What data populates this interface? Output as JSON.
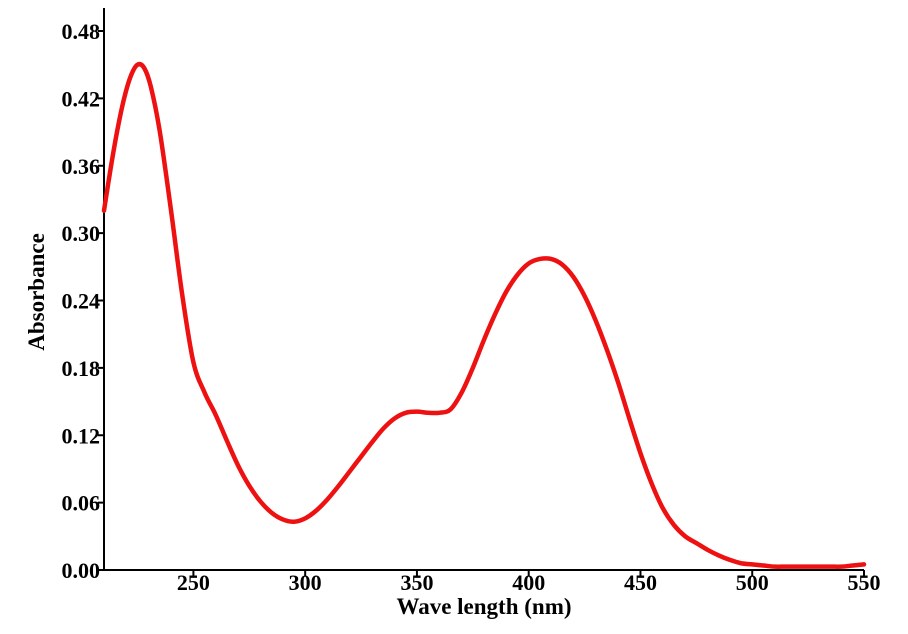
{
  "chart_data": {
    "type": "line",
    "title": "",
    "xlabel": "Wave length (nm)",
    "ylabel": "Absorbance",
    "xlim": [
      210,
      550
    ],
    "ylim": [
      0,
      0.48
    ],
    "x_ticks": [
      250,
      300,
      350,
      400,
      450,
      500,
      550
    ],
    "x_tick_labels": [
      "250",
      "300",
      "350",
      "400",
      "450",
      "500",
      "550"
    ],
    "y_ticks": [
      0,
      0.06,
      0.12,
      0.18,
      0.24,
      0.3,
      0.36,
      0.42,
      0.48
    ],
    "y_tick_labels": [
      "0.00",
      "0.06",
      "0.12",
      "0.18",
      "0.24",
      "0.30",
      "0.36",
      "0.42",
      "0.48"
    ],
    "grid": false,
    "legend": "none",
    "series": [
      {
        "color": "#ee1111",
        "x": [
          210,
          213,
          216,
          219,
          222,
          225,
          228,
          231,
          235,
          240,
          245,
          250,
          255,
          260,
          265,
          270,
          275,
          280,
          285,
          290,
          295,
          300,
          305,
          310,
          315,
          320,
          325,
          330,
          335,
          340,
          345,
          350,
          355,
          360,
          365,
          370,
          375,
          380,
          385,
          390,
          395,
          400,
          405,
          410,
          415,
          420,
          425,
          430,
          435,
          440,
          445,
          450,
          455,
          460,
          465,
          470,
          475,
          480,
          485,
          490,
          495,
          500,
          505,
          510,
          515,
          520,
          525,
          530,
          535,
          540,
          545,
          550
        ],
        "y": [
          0.32,
          0.358,
          0.392,
          0.42,
          0.44,
          0.45,
          0.447,
          0.43,
          0.39,
          0.32,
          0.245,
          0.185,
          0.158,
          0.138,
          0.115,
          0.093,
          0.075,
          0.061,
          0.051,
          0.045,
          0.043,
          0.046,
          0.053,
          0.063,
          0.075,
          0.088,
          0.101,
          0.114,
          0.126,
          0.135,
          0.14,
          0.141,
          0.14,
          0.14,
          0.143,
          0.158,
          0.18,
          0.205,
          0.228,
          0.248,
          0.263,
          0.273,
          0.277,
          0.277,
          0.272,
          0.261,
          0.244,
          0.222,
          0.196,
          0.167,
          0.135,
          0.104,
          0.077,
          0.055,
          0.04,
          0.03,
          0.024,
          0.018,
          0.013,
          0.009,
          0.006,
          0.005,
          0.004,
          0.003,
          0.003,
          0.003,
          0.003,
          0.003,
          0.003,
          0.003,
          0.004,
          0.005
        ]
      }
    ]
  }
}
